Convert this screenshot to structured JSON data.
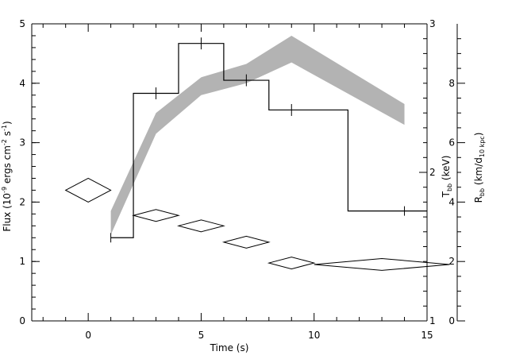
{
  "chart_data": {
    "type": "line",
    "title": "",
    "xlabel": "Time (s)",
    "xlim": [
      -2.5,
      15
    ],
    "x_ticks": [
      0,
      5,
      10,
      15
    ],
    "axes": {
      "left": {
        "label": "Flux (10<sup>-9</sup> ergs cm<sup>-2</sup> s<sup>-1</sup>)",
        "label_parts": [
          "Flux (10",
          "-9",
          " ergs cm",
          "-2",
          " s",
          "-1",
          ")"
        ],
        "ylim": [
          0,
          5
        ],
        "ticks": [
          0,
          1,
          2,
          3,
          4,
          5
        ]
      },
      "right_inner": {
        "label_main": "T",
        "label_sub": "bb",
        "label_tail": " (keV)",
        "ylim": [
          1,
          3
        ],
        "ticks": [
          1,
          2,
          3
        ]
      },
      "right_outer": {
        "label_main": "R",
        "label_sub": "bb",
        "label_mid": " (km/d",
        "label_sub2": "10 kpc",
        "label_tail": ")",
        "ylim": [
          0,
          10
        ],
        "ticks": [
          0,
          2,
          4,
          6,
          8
        ]
      }
    },
    "series": [
      {
        "style": "step",
        "axis": "left",
        "bins": [
          {
            "x0": 1,
            "x1": 2,
            "y": 1.4,
            "err": 0.08
          },
          {
            "x0": 2,
            "x1": 4,
            "y": 3.83,
            "err": 0.1
          },
          {
            "x0": 4,
            "x1": 6,
            "y": 4.67,
            "err": 0.1
          },
          {
            "x0": 6,
            "x1": 8,
            "y": 4.05,
            "err": 0.1
          },
          {
            "x0": 8,
            "x1": 11.5,
            "y": 3.55,
            "err": 0.1
          },
          {
            "x0": 11.5,
            "x1": 15,
            "y": 1.85,
            "err": 0.08
          }
        ]
      },
      {
        "style": "band",
        "axis": "right_outer",
        "x": [
          1,
          3,
          5,
          7,
          9,
          14
        ],
        "lower": [
          2.9,
          6.3,
          7.6,
          8.0,
          8.7,
          6.6
        ],
        "upper": [
          3.7,
          7.0,
          8.2,
          8.65,
          9.6,
          7.3
        ]
      },
      {
        "style": "diamond",
        "axis": "right_inner",
        "points": [
          {
            "x": 0,
            "x_err": 1,
            "y": 1.88,
            "y_err": 0.08
          },
          {
            "x": 3,
            "x_err": 1,
            "y": 1.71,
            "y_err": 0.04
          },
          {
            "x": 5,
            "x_err": 1,
            "y": 1.64,
            "y_err": 0.04
          },
          {
            "x": 7,
            "x_err": 1,
            "y": 1.53,
            "y_err": 0.04
          },
          {
            "x": 9,
            "x_err": 1,
            "y": 1.39,
            "y_err": 0.04
          },
          {
            "x": 13,
            "x_err": 3,
            "y": 1.38,
            "y_err": 0.04
          }
        ]
      }
    ]
  }
}
